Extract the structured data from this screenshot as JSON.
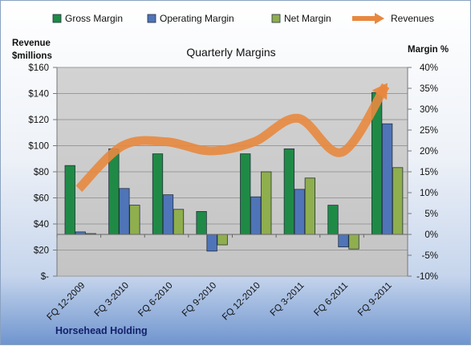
{
  "chart_data": {
    "type": "bar",
    "title": "Quarterly Margins",
    "company": "Horsehead Holding",
    "left_axis_title": [
      "Revenue",
      "$millions"
    ],
    "right_axis_title": "Margin %",
    "categories": [
      "FQ 12-2009",
      "FQ 3-2010",
      "FQ 6-2010",
      "FQ 9-2010",
      "FQ 12-2010",
      "FQ 3-2011",
      "FQ 6-2011",
      "FQ 9-2011"
    ],
    "left_ticks": [
      "$-",
      "$20",
      "$40",
      "$60",
      "$80",
      "$100",
      "$120",
      "$140",
      "$160"
    ],
    "right_ticks": [
      "-10%",
      "-5%",
      "0%",
      "5%",
      "10%",
      "15%",
      "20%",
      "25%",
      "30%",
      "35%",
      "40%"
    ],
    "left_range": [
      0,
      160
    ],
    "right_range": [
      -10,
      40
    ],
    "series": [
      {
        "name": "Gross Margin",
        "axis": "right",
        "kind": "bar",
        "color": "#1f8a45",
        "values": [
          16.5,
          20.5,
          19.3,
          5.5,
          19.3,
          20.5,
          7.0,
          34.0
        ]
      },
      {
        "name": "Operating Margin",
        "axis": "right",
        "kind": "bar",
        "color": "#4f74b8",
        "values": [
          0.6,
          11.0,
          9.5,
          -4.0,
          9.0,
          10.8,
          -3.0,
          26.5
        ]
      },
      {
        "name": "Net Margin",
        "axis": "right",
        "kind": "bar",
        "color": "#8fae4e",
        "values": [
          0.2,
          7.0,
          6.0,
          -2.5,
          15.0,
          13.5,
          -3.5,
          16.0
        ]
      },
      {
        "name": "Revenues",
        "axis": "left",
        "kind": "line",
        "color": "#e8883f",
        "values": [
          67,
          100,
          103,
          96,
          103,
          121,
          95,
          146
        ]
      }
    ],
    "grid": true,
    "legend": "top"
  }
}
